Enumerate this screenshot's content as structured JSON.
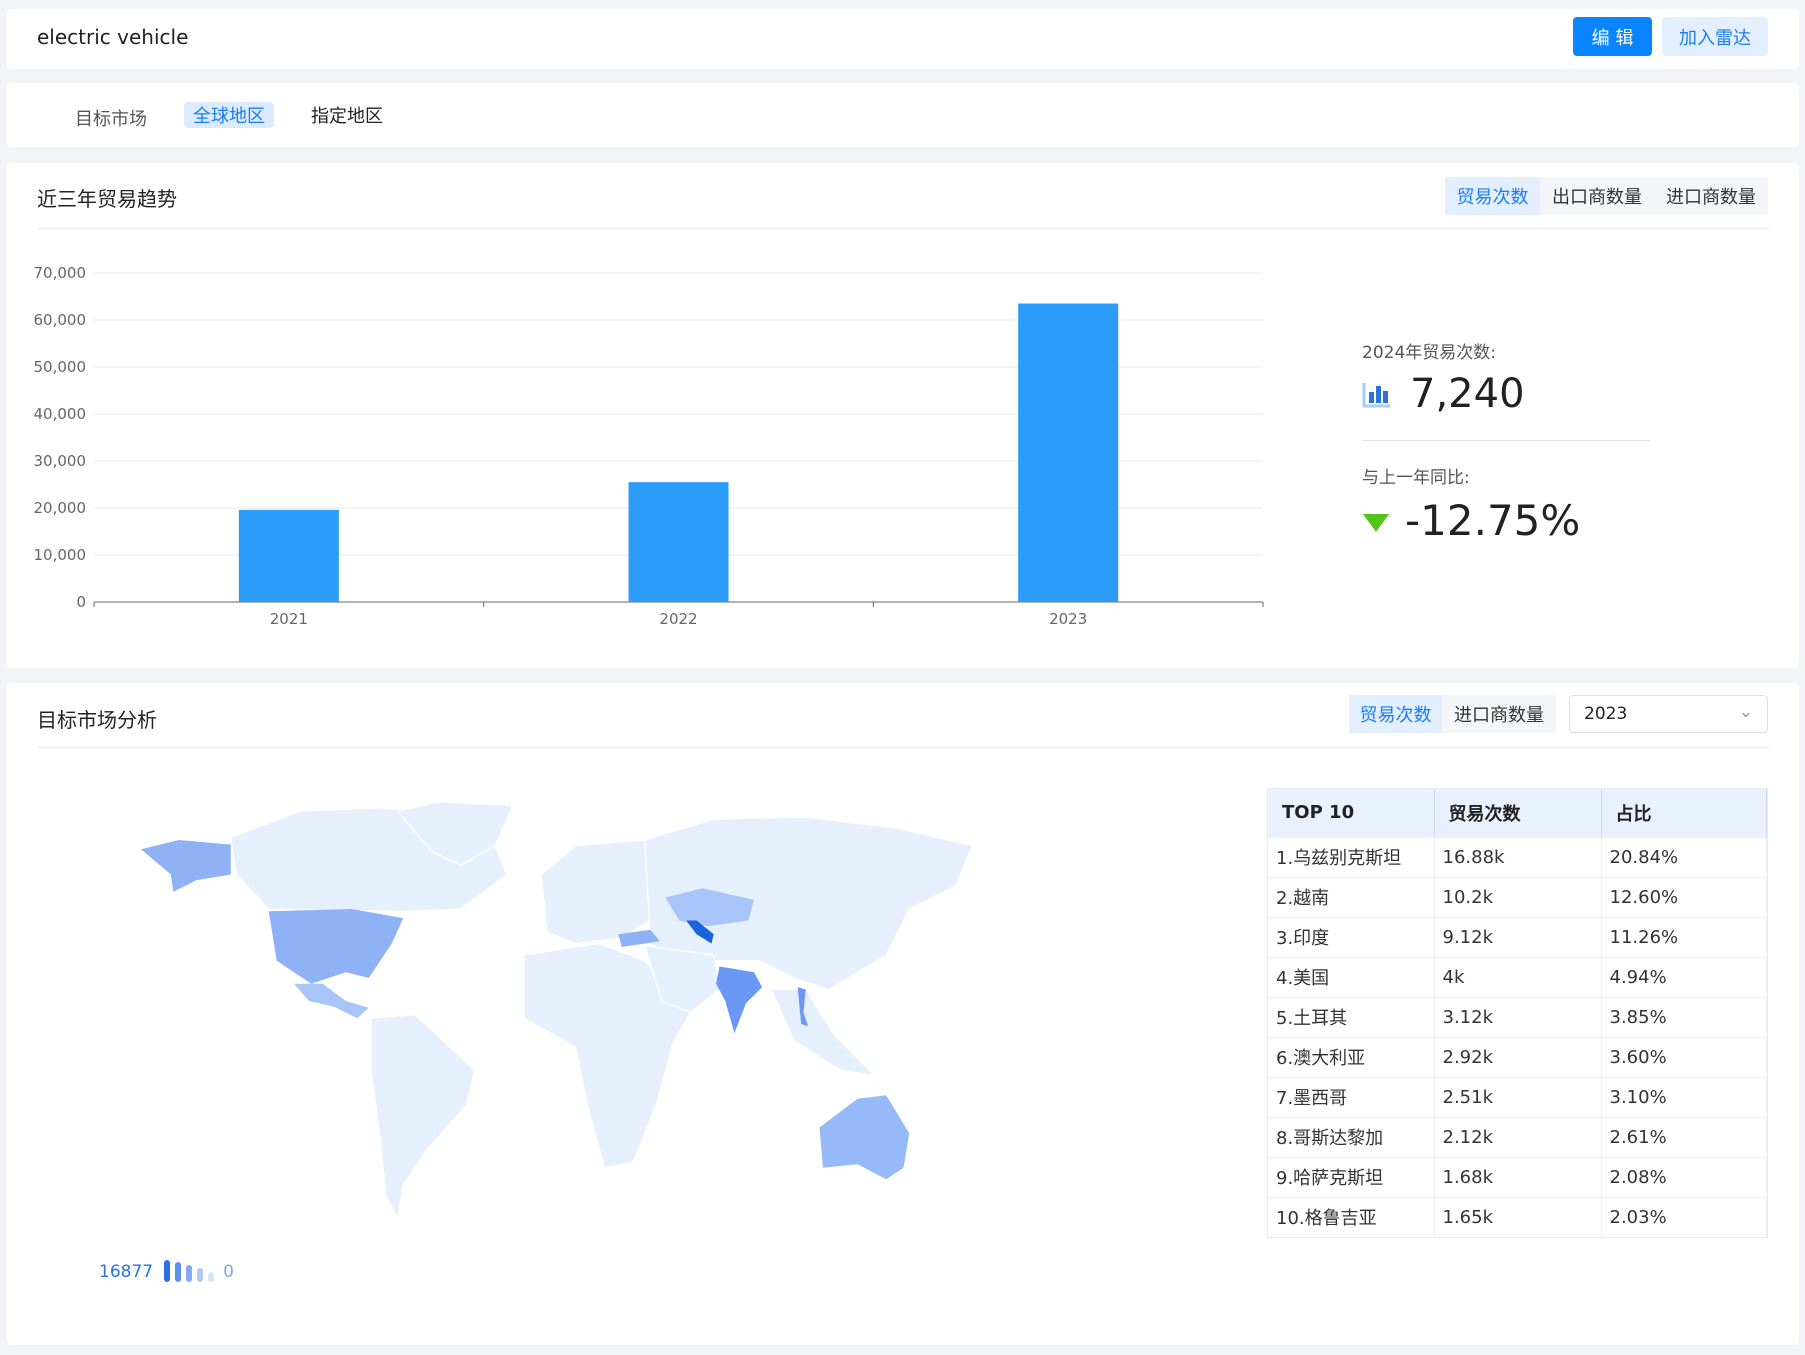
{
  "header": {
    "title": "electric vehicle",
    "edit_label": "编 辑",
    "radar_label": "加入雷达"
  },
  "region_tabs": {
    "label": "目标市场",
    "items": [
      "全球地区",
      "指定地区"
    ],
    "active": "全球地区"
  },
  "trend": {
    "title": "近三年贸易趋势",
    "toggles": [
      "贸易次数",
      "出口商数量",
      "进口商数量"
    ],
    "active": "贸易次数",
    "stat_label": "2024年贸易次数:",
    "stat_value": "7,240",
    "yoy_label": "与上一年同比:",
    "yoy_value": "-12.75%",
    "yoy_direction": "down",
    "yoy_color": "#52c41a"
  },
  "chart_data": {
    "type": "bar",
    "categories": [
      "2021",
      "2022",
      "2023"
    ],
    "values": [
      19600,
      25500,
      63500
    ],
    "ylim": [
      0,
      70000
    ],
    "yticks": [
      "0",
      "10,000",
      "20,000",
      "30,000",
      "40,000",
      "50,000",
      "60,000",
      "70,000"
    ],
    "color": "#2b9cf8",
    "grid": true
  },
  "market": {
    "title": "目标市场分析",
    "toggles": [
      "贸易次数",
      "进口商数量"
    ],
    "active": "贸易次数",
    "year": "2023",
    "legend": {
      "max": "16877",
      "min": "0"
    },
    "table": {
      "headers": [
        "TOP 10",
        "贸易次数",
        "占比"
      ],
      "rows": [
        [
          "1.乌兹别克斯坦",
          "16.88k",
          "20.84%"
        ],
        [
          "2.越南",
          "10.2k",
          "12.60%"
        ],
        [
          "3.印度",
          "9.12k",
          "11.26%"
        ],
        [
          "4.美国",
          "4k",
          "4.94%"
        ],
        [
          "5.土耳其",
          "3.12k",
          "3.85%"
        ],
        [
          "6.澳大利亚",
          "2.92k",
          "3.60%"
        ],
        [
          "7.墨西哥",
          "2.51k",
          "3.10%"
        ],
        [
          "8.哥斯达黎加",
          "2.12k",
          "2.61%"
        ],
        [
          "9.哈萨克斯坦",
          "1.68k",
          "2.08%"
        ],
        [
          "10.格鲁吉亚",
          "1.65k",
          "2.03%"
        ]
      ]
    }
  }
}
